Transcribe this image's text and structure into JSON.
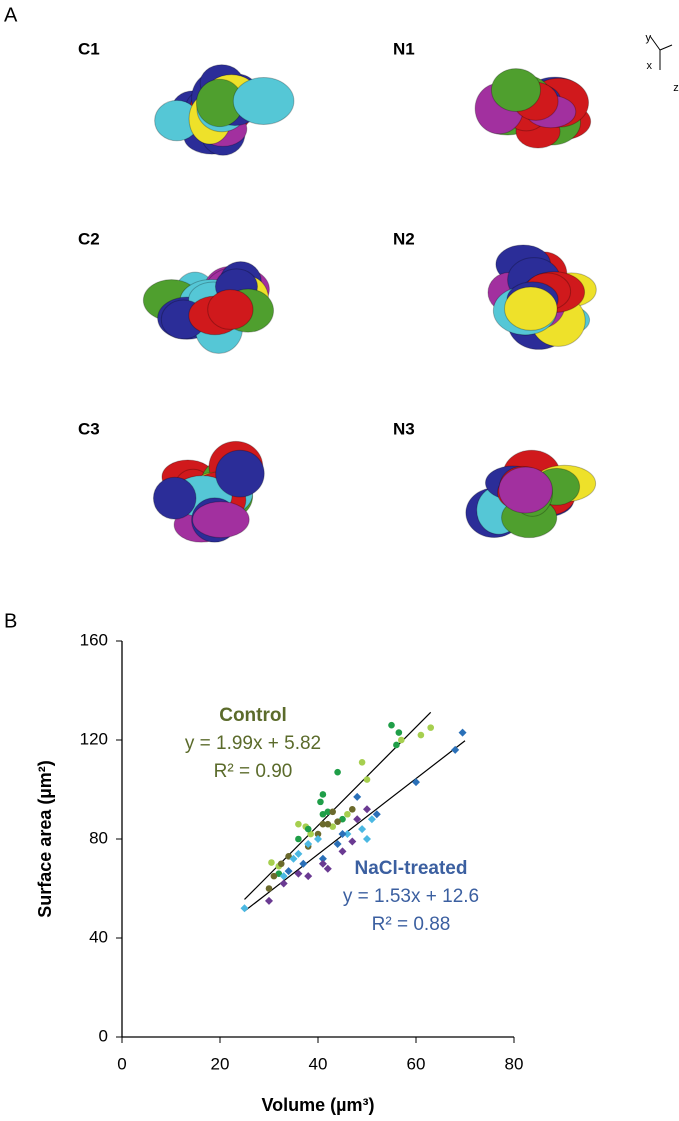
{
  "panel_a": {
    "label": "A",
    "renders": [
      "C1",
      "N1",
      "C2",
      "N2",
      "C3",
      "N3"
    ],
    "orientation": [
      "y",
      "x",
      "z"
    ]
  },
  "chart_data": {
    "type": "scatter",
    "panel_label": "B",
    "xlabel": "Volume (µm³)",
    "ylabel": "Surface area (µm²)",
    "xlim": [
      0,
      80
    ],
    "ylim": [
      0,
      160
    ],
    "xticks": [
      0,
      20,
      40,
      60,
      80
    ],
    "yticks": [
      0,
      40,
      80,
      120,
      160
    ],
    "series": [
      {
        "color": "#a6cf4f",
        "marker": "circle",
        "x": [
          30.5,
          32,
          36,
          37.5,
          38.5,
          43,
          46,
          49,
          50,
          57,
          61,
          63
        ],
        "values": [
          70.5,
          69,
          86,
          85,
          82,
          85,
          90,
          111,
          104,
          120,
          122,
          125
        ]
      },
      {
        "color": "#1f9e48",
        "marker": "circle",
        "x": [
          32,
          36,
          38,
          40.5,
          41,
          41,
          42,
          44,
          45,
          55,
          56.5,
          56
        ],
        "values": [
          66,
          80,
          84,
          95,
          98,
          90,
          91,
          107,
          88,
          126,
          123,
          118
        ]
      },
      {
        "color": "#6b6a2c",
        "marker": "circle",
        "x": [
          30,
          31,
          32.5,
          34,
          38,
          40,
          41,
          42,
          43,
          44,
          47
        ],
        "values": [
          60,
          65,
          70,
          73,
          77,
          82,
          86,
          86,
          91,
          87,
          92
        ]
      },
      {
        "color": "#4bb8e2",
        "marker": "diamond",
        "x": [
          25,
          33,
          35,
          36,
          38,
          40,
          46,
          49,
          50,
          51
        ],
        "values": [
          52,
          65,
          72,
          74,
          78,
          80,
          82,
          84,
          80,
          88
        ]
      },
      {
        "color": "#2a70b8",
        "marker": "diamond",
        "x": [
          34,
          37,
          41,
          44,
          45,
          48,
          52,
          60,
          68,
          69.5
        ],
        "values": [
          67,
          70,
          72,
          78,
          82,
          97,
          90,
          103,
          116,
          123
        ]
      },
      {
        "color": "#6a3a92",
        "marker": "diamond",
        "x": [
          30,
          33,
          36,
          38,
          41,
          42,
          45,
          47,
          48,
          50
        ],
        "values": [
          55,
          62,
          66,
          65,
          70,
          68,
          75,
          79,
          88,
          92
        ]
      }
    ],
    "fits": [
      {
        "label": "Control",
        "equation": "y = 1.99x + 5.82",
        "r2": "R² = 0.90",
        "slope": 1.99,
        "intercept": 5.82,
        "xrange": [
          25,
          63
        ],
        "color": "#5b6b2b"
      },
      {
        "label": "NaCl-treated",
        "equation": "y = 1.53x + 12.6",
        "r2": "R² = 0.88",
        "slope": 1.53,
        "intercept": 12.6,
        "xrange": [
          25,
          70
        ],
        "color": "#3b5fa0"
      }
    ]
  }
}
